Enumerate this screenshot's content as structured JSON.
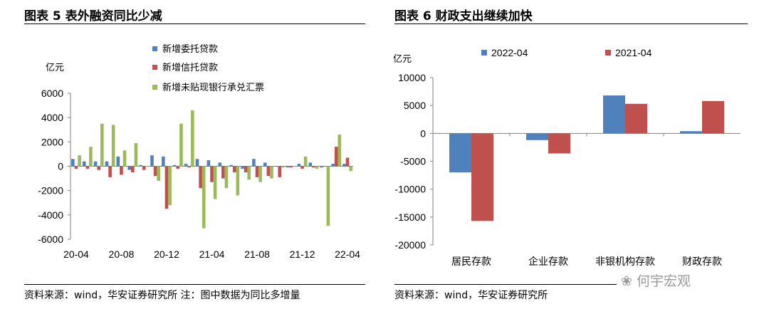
{
  "left_panel": {
    "title": "图表 5 表外融资同比少减",
    "source": "资料来源：wind，华安证券研究所 注：图中数据为同比多增量"
  },
  "right_panel": {
    "title": "图表 6  财政支出继续加快",
    "source": "资料来源：wind，华安证券研究所"
  },
  "watermark": "何宇宏观",
  "colors": {
    "blue": "#4F81BD",
    "red": "#C0504D",
    "green": "#9BBB59"
  },
  "chart_data": [
    {
      "type": "bar",
      "ylabel": "亿元",
      "ylim": [
        -6000,
        6000
      ],
      "yticks": [
        "6000",
        "4000",
        "2000",
        "0",
        "-2000",
        "-4000",
        "-6000"
      ],
      "ytick_values": [
        6000,
        4000,
        2000,
        0,
        -2000,
        -4000,
        -6000
      ],
      "xtick_labels": [
        "20-04",
        "20-08",
        "20-12",
        "21-04",
        "21-08",
        "21-12",
        "22-04"
      ],
      "xtick_index": [
        0,
        4,
        8,
        12,
        16,
        20,
        24
      ],
      "categories": [
        "20-04",
        "20-05",
        "20-06",
        "20-07",
        "20-08",
        "20-09",
        "20-10",
        "20-11",
        "20-12",
        "21-01",
        "21-02",
        "21-03",
        "21-04",
        "21-05",
        "21-06",
        "21-07",
        "21-08",
        "21-09",
        "21-10",
        "21-11",
        "21-12",
        "22-01",
        "22-02",
        "22-03",
        "22-04"
      ],
      "series": [
        {
          "name": "新增委托贷款",
          "color": "#4F81BD",
          "values": [
            600,
            400,
            400,
            400,
            800,
            -300,
            100,
            900,
            800,
            100,
            200,
            600,
            500,
            300,
            100,
            -200,
            600,
            300,
            0,
            -100,
            200,
            300,
            -100,
            200,
            200
          ]
        },
        {
          "name": "新增信托贷款",
          "color": "#C0504D",
          "values": [
            -200,
            -200,
            -300,
            -900,
            -700,
            -500,
            -300,
            -800,
            -3500,
            -200,
            -100,
            -1800,
            -1300,
            -1000,
            -500,
            -500,
            -900,
            -800,
            -900,
            -100,
            -200,
            -100,
            0,
            1600,
            700
          ]
        },
        {
          "name": "新增未贴现银行承兑汇票",
          "color": "#9BBB59",
          "values": [
            900,
            1600,
            3500,
            3400,
            1300,
            1900,
            0,
            -1200,
            -3200,
            3500,
            4600,
            -5100,
            -2700,
            -1800,
            -2400,
            -1100,
            -1300,
            -1000,
            -100,
            0,
            800,
            -200,
            -4900,
            2600,
            -400
          ]
        }
      ]
    },
    {
      "type": "bar",
      "ylabel": "亿元",
      "ylim": [
        -20000,
        10000
      ],
      "yticks": [
        "10000",
        "5000",
        "0",
        "-5000",
        "-10000",
        "-15000",
        "-20000"
      ],
      "ytick_values": [
        10000,
        5000,
        0,
        -5000,
        -10000,
        -15000,
        -20000
      ],
      "categories": [
        "居民存款",
        "企业存款",
        "非银机构存款",
        "财政存款"
      ],
      "series": [
        {
          "name": "2022-04",
          "color": "#4F81BD",
          "values": [
            -7000,
            -1200,
            6800,
            400
          ]
        },
        {
          "name": "2021-04",
          "color": "#C0504D",
          "values": [
            -15700,
            -3600,
            5300,
            5800
          ]
        }
      ]
    }
  ]
}
